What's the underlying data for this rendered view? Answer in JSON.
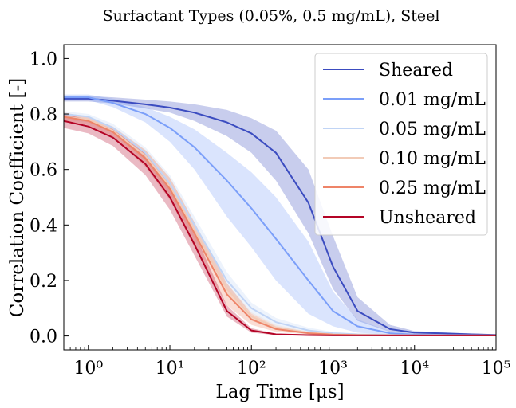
{
  "chart_data": {
    "type": "line",
    "title": "Surfactant Types (0.05%, 0.5 mg/mL), Steel",
    "xlabel": "Lag Time [μs]",
    "ylabel": "Correlation Coefficient [-]",
    "xscale": "log",
    "xlim": [
      0.5,
      100000
    ],
    "ylim": [
      -0.05,
      1.05
    ],
    "xticks": [
      1,
      10,
      100,
      1000,
      10000,
      100000
    ],
    "xtick_labels": [
      "10⁰",
      "10¹",
      "10²",
      "10³",
      "10⁴",
      "10⁵"
    ],
    "yticks": [
      0.0,
      0.2,
      0.4,
      0.6,
      0.8,
      1.0
    ],
    "ytick_labels": [
      "0.0",
      "0.2",
      "0.4",
      "0.6",
      "0.8",
      "1.0"
    ],
    "grid": false,
    "legend_position": "top-right",
    "x": [
      0.5,
      1,
      2,
      5,
      10,
      20,
      50,
      100,
      200,
      500,
      1000,
      2000,
      5000,
      10000,
      20000,
      50000,
      100000
    ],
    "series": [
      {
        "name": "Sheared",
        "color": "#3b4cc0",
        "values": [
          0.855,
          0.855,
          0.848,
          0.835,
          0.823,
          0.805,
          0.77,
          0.73,
          0.66,
          0.48,
          0.25,
          0.09,
          0.025,
          0.012,
          0.01,
          0.006,
          0.004
        ],
        "lower": [
          0.845,
          0.845,
          0.838,
          0.82,
          0.805,
          0.775,
          0.72,
          0.66,
          0.56,
          0.37,
          0.17,
          0.055,
          0.015,
          0.008,
          0.006,
          0.004,
          0.002
        ],
        "upper": [
          0.865,
          0.865,
          0.86,
          0.852,
          0.845,
          0.835,
          0.815,
          0.785,
          0.74,
          0.6,
          0.36,
          0.14,
          0.04,
          0.018,
          0.014,
          0.009,
          0.006
        ]
      },
      {
        "name": "0.01 mg/mL",
        "color": "#7b9ff9",
        "values": [
          0.86,
          0.86,
          0.84,
          0.8,
          0.75,
          0.68,
          0.56,
          0.46,
          0.35,
          0.2,
          0.09,
          0.035,
          0.01,
          0.005,
          0.004,
          0.003,
          0.002
        ],
        "lower": [
          0.85,
          0.85,
          0.825,
          0.77,
          0.7,
          0.6,
          0.43,
          0.32,
          0.2,
          0.08,
          0.035,
          0.012,
          0.004,
          0.002,
          0.002,
          0.001,
          0.001
        ],
        "upper": [
          0.87,
          0.87,
          0.855,
          0.825,
          0.79,
          0.745,
          0.66,
          0.59,
          0.5,
          0.34,
          0.16,
          0.06,
          0.016,
          0.008,
          0.006,
          0.004,
          0.003
        ]
      },
      {
        "name": "0.05 mg/mL",
        "color": "#c0d4f5",
        "values": [
          0.8,
          0.79,
          0.75,
          0.66,
          0.55,
          0.4,
          0.2,
          0.1,
          0.05,
          0.02,
          0.01,
          0.006,
          0.004,
          0.003,
          0.003,
          0.002,
          0.002
        ],
        "lower": [
          0.79,
          0.78,
          0.74,
          0.64,
          0.52,
          0.37,
          0.17,
          0.08,
          0.035,
          0.012,
          0.005,
          0.003,
          0.002,
          0.001,
          0.001,
          0.001,
          0.001
        ],
        "upper": [
          0.81,
          0.8,
          0.765,
          0.68,
          0.58,
          0.43,
          0.23,
          0.12,
          0.065,
          0.03,
          0.015,
          0.009,
          0.006,
          0.004,
          0.004,
          0.003,
          0.003
        ]
      },
      {
        "name": "0.10 mg/mL",
        "color": "#f2cbb7",
        "values": [
          0.79,
          0.78,
          0.74,
          0.65,
          0.54,
          0.38,
          0.17,
          0.07,
          0.03,
          0.012,
          0.006,
          0.004,
          0.003,
          0.002,
          0.002,
          0.002,
          0.002
        ],
        "lower": [
          0.78,
          0.77,
          0.73,
          0.63,
          0.51,
          0.35,
          0.15,
          0.055,
          0.022,
          0.008,
          0.004,
          0.002,
          0.001,
          0.001,
          0.001,
          0.001,
          0.001
        ],
        "upper": [
          0.8,
          0.79,
          0.75,
          0.67,
          0.57,
          0.41,
          0.19,
          0.085,
          0.04,
          0.016,
          0.008,
          0.005,
          0.004,
          0.003,
          0.003,
          0.003,
          0.003
        ]
      },
      {
        "name": "0.25 mg/mL",
        "color": "#ee8468",
        "values": [
          0.79,
          0.775,
          0.735,
          0.64,
          0.53,
          0.37,
          0.15,
          0.06,
          0.025,
          0.01,
          0.005,
          0.003,
          0.002,
          0.002,
          0.002,
          0.002,
          0.002
        ],
        "lower": [
          0.775,
          0.76,
          0.715,
          0.61,
          0.49,
          0.32,
          0.11,
          0.04,
          0.015,
          0.006,
          0.003,
          0.002,
          0.001,
          0.001,
          0.001,
          0.001,
          0.001
        ],
        "upper": [
          0.805,
          0.79,
          0.755,
          0.67,
          0.57,
          0.41,
          0.19,
          0.08,
          0.035,
          0.014,
          0.007,
          0.004,
          0.003,
          0.003,
          0.003,
          0.003,
          0.003
        ]
      },
      {
        "name": "Unsheared",
        "color": "#b40426",
        "values": [
          0.775,
          0.755,
          0.715,
          0.62,
          0.5,
          0.33,
          0.09,
          0.02,
          0.006,
          0.003,
          0.002,
          0.002,
          0.002,
          0.002,
          0.002,
          0.002,
          0.002
        ],
        "lower": [
          0.75,
          0.73,
          0.685,
          0.58,
          0.455,
          0.29,
          0.07,
          0.012,
          0.003,
          0.001,
          0.001,
          0.001,
          0.001,
          0.001,
          0.001,
          0.001,
          0.001
        ],
        "upper": [
          0.8,
          0.78,
          0.745,
          0.66,
          0.545,
          0.37,
          0.11,
          0.028,
          0.009,
          0.005,
          0.003,
          0.003,
          0.003,
          0.003,
          0.003,
          0.003,
          0.003
        ]
      }
    ]
  }
}
